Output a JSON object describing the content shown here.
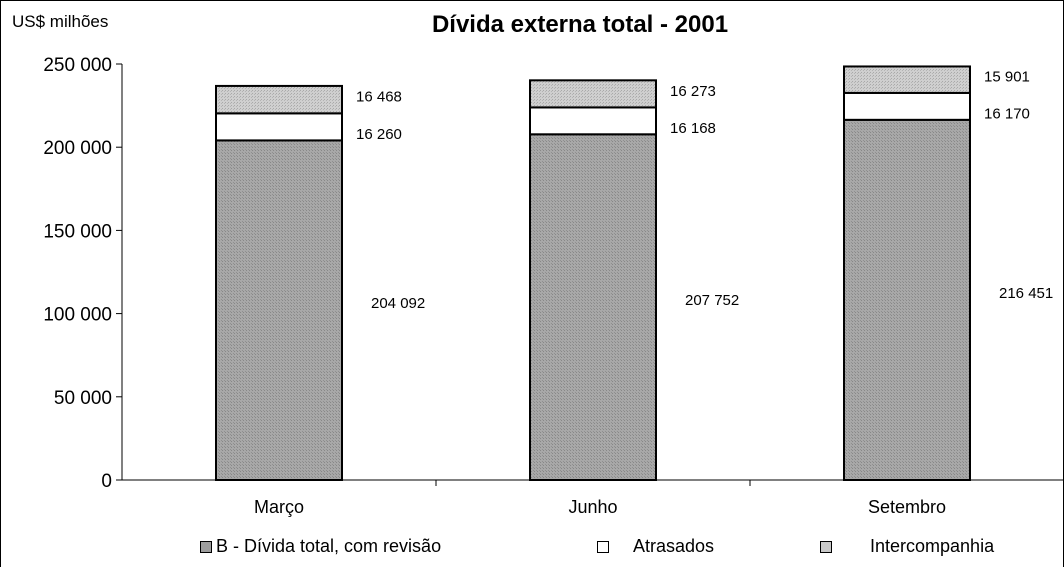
{
  "chart_data": {
    "type": "bar",
    "stacked": true,
    "title": "Dívida externa total - 2001",
    "ylabel": "US$ milhões",
    "xlabel": "",
    "categories": [
      "Março",
      "Junho",
      "Setembro"
    ],
    "ylim": [
      0,
      250000
    ],
    "yticks": [
      0,
      50000,
      100000,
      150000,
      200000,
      250000
    ],
    "ytick_labels": [
      "0",
      "50 000",
      "100 000",
      "150 000",
      "200 000",
      "250 000"
    ],
    "grid": false,
    "legend_position": "bottom",
    "series": [
      {
        "name": "B - Dívida total, com revisão",
        "values": [
          204092,
          207752,
          216451
        ],
        "labels": [
          "204 092",
          "207 752",
          "216 451"
        ],
        "color": "#a6a6a6"
      },
      {
        "name": "Atrasados",
        "values": [
          16260,
          16168,
          16170
        ],
        "labels": [
          "16 260",
          "16 168",
          "16 170"
        ],
        "color": "#ffffff"
      },
      {
        "name": "Intercompanhia",
        "values": [
          16468,
          16273,
          15901
        ],
        "labels": [
          "16 468",
          "16 273",
          "15 901"
        ],
        "color": "#c8c8c8"
      }
    ]
  }
}
